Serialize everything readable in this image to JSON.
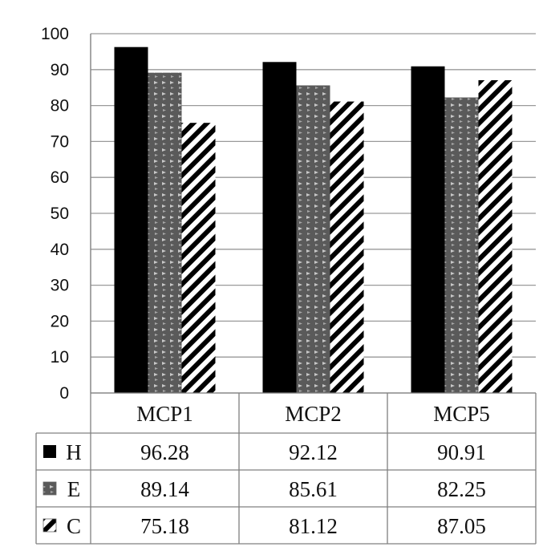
{
  "chart_data": {
    "type": "bar",
    "title": "",
    "xlabel": "",
    "ylabel": "",
    "ylim": [
      0,
      100
    ],
    "y_ticks": [
      "0",
      "10",
      "20",
      "30",
      "40",
      "50",
      "60",
      "70",
      "80",
      "90",
      "100"
    ],
    "grid": "horizontal",
    "legend_placement": "data-table-left",
    "categories": [
      "MCP1",
      "MCP2",
      "MCP5"
    ],
    "series": [
      {
        "name": "H",
        "values": [
          96.28,
          92.12,
          90.91
        ],
        "labels": [
          "96.28",
          "92.12",
          "90.91"
        ],
        "fill": "solid-black",
        "color": "#000000"
      },
      {
        "name": "E",
        "values": [
          89.14,
          85.61,
          82.25
        ],
        "labels": [
          "89.14",
          "85.61",
          "82.25"
        ],
        "fill": "dotted-gray",
        "color": "#5a5a5a"
      },
      {
        "name": "C",
        "values": [
          75.18,
          81.12,
          87.05
        ],
        "labels": [
          "75.18",
          "81.12",
          "87.05"
        ],
        "fill": "diagonal-stripes",
        "color": "#000000"
      }
    ]
  }
}
